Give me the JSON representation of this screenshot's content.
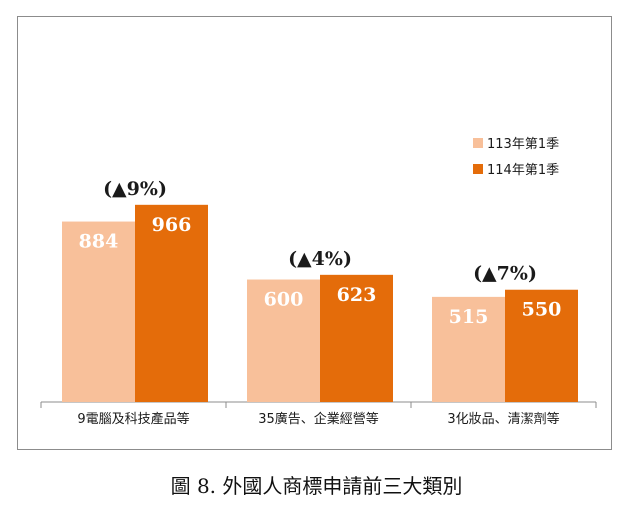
{
  "caption": "圖 8. 外國人商標申請前三大類別",
  "chart_data": {
    "type": "bar",
    "categories": [
      "9電腦及科技產品等",
      "35廣告、企業經營等",
      "3化妝品、清潔劑等"
    ],
    "series": [
      {
        "name": "113年第1季",
        "values": [
          884,
          600,
          515
        ],
        "color": "#f8c09a"
      },
      {
        "name": "114年第1季",
        "values": [
          966,
          623,
          550
        ],
        "color": "#e46c0a"
      }
    ],
    "change_labels": [
      "(▲9%)",
      "(▲4%)",
      "(▲7%)"
    ],
    "ylim": [
      0,
      1000
    ],
    "grid": false,
    "legend_position": "right",
    "xlabel": "",
    "ylabel": ""
  }
}
